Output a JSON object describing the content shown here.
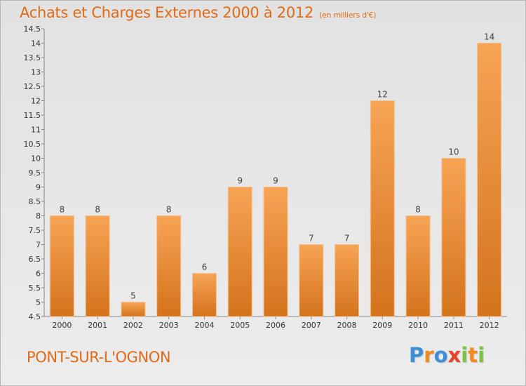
{
  "header": {
    "title": "Achats et Charges Externes 2000 à 2012",
    "subtitle": "(en milliers d'€)"
  },
  "footer": {
    "place": "PONT-SUR-L'OGNON",
    "logo": "Proxiti"
  },
  "colors": {
    "accent": "#e06a16",
    "bar_top": "#f7a455",
    "bar_bottom": "#d4731c"
  },
  "chart_data": {
    "type": "bar",
    "categories": [
      "2000",
      "2001",
      "2002",
      "2003",
      "2004",
      "2005",
      "2006",
      "2007",
      "2008",
      "2009",
      "2010",
      "2011",
      "2012"
    ],
    "values": [
      8,
      8,
      5,
      8,
      6,
      9,
      9,
      7,
      7,
      12,
      8,
      10,
      14
    ],
    "value_labels": [
      "8",
      "8",
      "5",
      "8",
      "6",
      "9",
      "9",
      "7",
      "7",
      "12",
      "8",
      "10",
      "14"
    ],
    "yticks": [
      "4.5",
      "5",
      "5.5",
      "6",
      "6.5",
      "7",
      "7.5",
      "8",
      "8.5",
      "9",
      "9.5",
      "10",
      "10.5",
      "11",
      "11.5",
      "12",
      "12.5",
      "13",
      "13.5",
      "14",
      "14.5"
    ],
    "ylim": [
      4.5,
      14.5
    ],
    "grid": false,
    "title": "Achats et Charges Externes 2000 à 2012",
    "xlabel": "",
    "ylabel": ""
  }
}
